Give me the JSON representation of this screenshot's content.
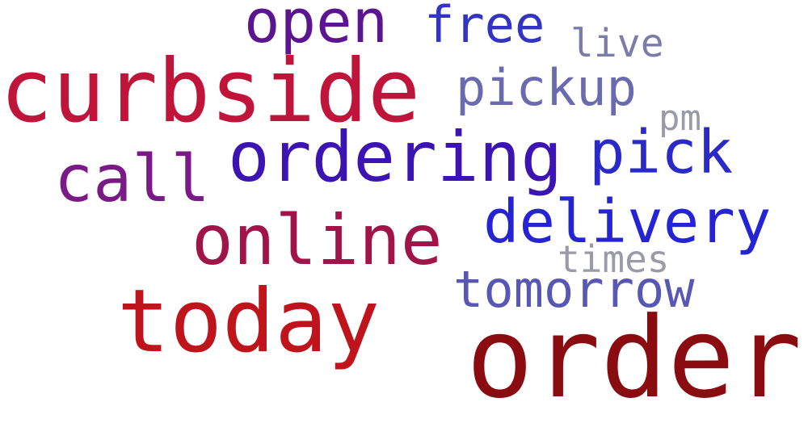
{
  "words": [
    {
      "id": "order",
      "text": "order",
      "color": "#8b0c10"
    },
    {
      "id": "curbside",
      "text": "curbside",
      "color": "#c0143a"
    },
    {
      "id": "today",
      "text": "today",
      "color": "#c0141c"
    },
    {
      "id": "ordering",
      "text": "ordering",
      "color": "#3c14b4"
    },
    {
      "id": "online",
      "text": "online",
      "color": "#a0144a"
    },
    {
      "id": "call",
      "text": "call",
      "color": "#7a1a86"
    },
    {
      "id": "delivery",
      "text": "delivery",
      "color": "#2424d4"
    },
    {
      "id": "pick",
      "text": "pick",
      "color": "#2a2ac8"
    },
    {
      "id": "open",
      "text": "open",
      "color": "#5c1490"
    },
    {
      "id": "tomorrow",
      "text": "tomorrow",
      "color": "#5858b4"
    },
    {
      "id": "free",
      "text": "free",
      "color": "#3434c4"
    },
    {
      "id": "pickup",
      "text": "pickup",
      "color": "#6a6ab0"
    },
    {
      "id": "live",
      "text": "live",
      "color": "#7c7ca8"
    },
    {
      "id": "times",
      "text": "times",
      "color": "#9a9aa8"
    },
    {
      "id": "pm",
      "text": "pm",
      "color": "#9a9aa8"
    }
  ]
}
